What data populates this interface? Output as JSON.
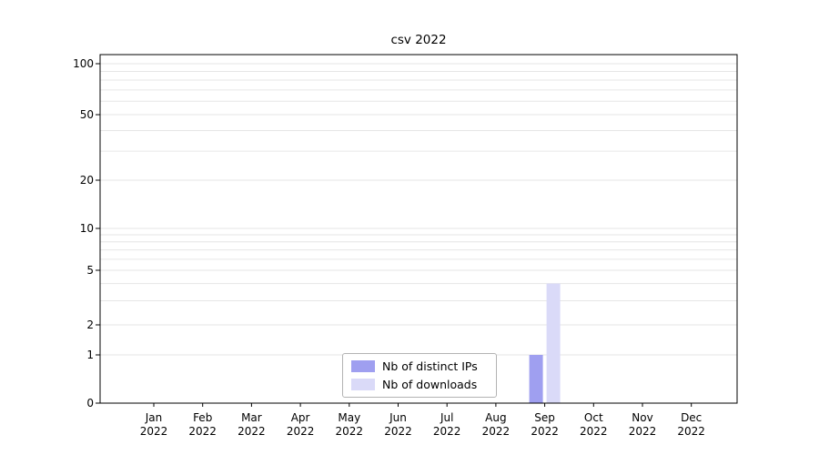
{
  "chart_data": {
    "type": "bar",
    "title": "csv 2022",
    "categories": [
      "Jan",
      "Feb",
      "Mar",
      "Apr",
      "May",
      "Jun",
      "Jul",
      "Aug",
      "Sep",
      "Oct",
      "Nov",
      "Dec"
    ],
    "category_year": "2022",
    "series": [
      {
        "name": "Nb of distinct IPs",
        "color": "#9f9ff0",
        "values": [
          0,
          0,
          0,
          0,
          0,
          0,
          0,
          0,
          1,
          0,
          0,
          0
        ]
      },
      {
        "name": "Nb of downloads",
        "color": "#dadaf8",
        "values": [
          0,
          0,
          0,
          0,
          0,
          0,
          0,
          0,
          4,
          0,
          0,
          0
        ]
      }
    ],
    "yscale": "symlog",
    "yticks": [
      0,
      1,
      2,
      5,
      10,
      20,
      50,
      100
    ],
    "ylim": [
      0,
      100
    ],
    "xlabel": "",
    "ylabel": "",
    "grid": true,
    "grid_color": "#e6e6e6",
    "legend_position": "lower center"
  }
}
